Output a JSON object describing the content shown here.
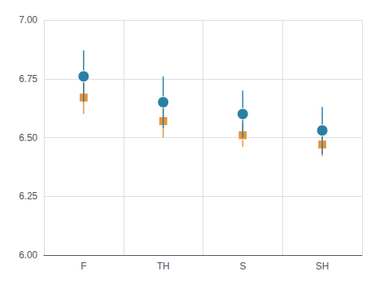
{
  "chart_data": {
    "type": "scatter",
    "categories": [
      "F",
      "TH",
      "S",
      "SH"
    ],
    "series": [
      {
        "color": "#2a7fa5",
        "marker": "circle",
        "values": [
          6.76,
          6.65,
          6.6,
          6.53
        ],
        "ci_low": [
          6.65,
          6.54,
          6.5,
          6.43
        ],
        "ci_high": [
          6.87,
          6.76,
          6.7,
          6.63
        ]
      },
      {
        "color": "#e8943a",
        "marker": "square",
        "values": [
          6.67,
          6.57,
          6.51,
          6.47
        ],
        "ci_low": [
          6.6,
          6.5,
          6.46,
          6.42
        ],
        "ci_high": [
          6.74,
          6.64,
          6.56,
          6.52
        ]
      }
    ],
    "ylim": [
      6.0,
      7.0
    ],
    "yticks": [
      {
        "value": 6.0,
        "label": "6.00"
      },
      {
        "value": 6.25,
        "label": "6.25"
      },
      {
        "value": 6.5,
        "label": "6.50"
      },
      {
        "value": 6.75,
        "label": "6.75"
      },
      {
        "value": 7.0,
        "label": "7.00"
      }
    ],
    "grid": true
  }
}
